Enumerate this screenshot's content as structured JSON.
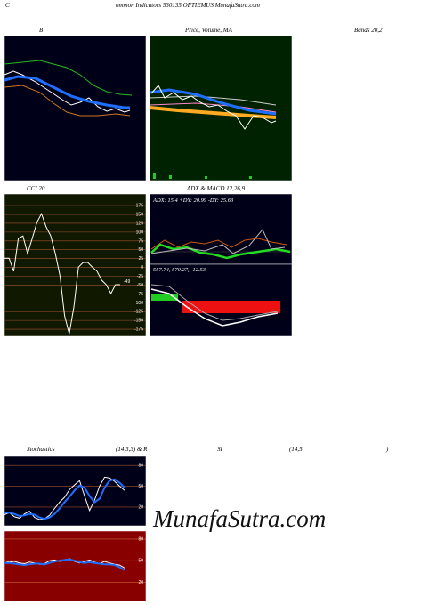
{
  "header": {
    "lead": "C",
    "title": "ommon  Indicators 530135 OPTIEMUS MunafaSutra.com"
  },
  "labels": {
    "b": "B",
    "price": "Price, Volume, MA",
    "bands": "Bands 20,2",
    "cci": "CCI 20",
    "adx_macd": "ADX  & MACD 12,26,9",
    "adx": "ADX: 15.4  +DY: 20.99 -DY: 25.63",
    "macd": "557.74,  570.27,  -12.53",
    "cci_last": "-49",
    "stoch": "Stochastics",
    "stoch_params": "(14,3,3) & R",
    "rsi": "SI",
    "rsi_params": "(14,5",
    "close": ")"
  },
  "watermark": "MunafaSutra.com",
  "chart_data": [
    {
      "type": "line",
      "ylim": [
        -195,
        208
      ],
      "yticks": [
        175,
        150,
        125,
        100,
        75,
        50,
        25,
        0,
        -25,
        -50,
        -75,
        -100,
        -125,
        -150,
        -175
      ],
      "series": [
        {
          "color": "#ffffff",
          "values": [
            26,
            26,
            -11,
            82,
            89,
            39,
            82,
            127,
            152,
            115,
            89,
            39,
            -24,
            -137,
            -188,
            -112,
            1,
            14,
            14,
            1,
            -11,
            -36,
            -49,
            -74,
            -49,
            -49
          ]
        }
      ]
    },
    {
      "type": "line",
      "ylim": [
        -7,
        93
      ],
      "yticks": [
        80,
        50,
        20
      ],
      "series": [
        {
          "color": "#ffffff",
          "values": [
            9,
            12,
            6,
            4,
            10,
            14,
            5,
            2,
            3,
            8,
            18,
            27,
            34,
            45,
            52,
            58,
            36,
            15,
            30,
            50,
            63,
            62,
            57,
            50,
            44
          ]
        },
        {
          "color": "#1e6fff",
          "values": [
            12,
            12,
            10,
            7,
            8,
            10,
            9,
            5,
            3,
            5,
            10,
            18,
            27,
            35,
            44,
            51,
            48,
            36,
            27,
            32,
            48,
            58,
            60,
            55,
            48
          ]
        }
      ]
    },
    {
      "type": "line",
      "ylim": [
        -6.5,
        91
      ],
      "yticks": [
        80,
        50,
        20
      ],
      "series": [
        {
          "color": "#ffffff",
          "values": [
            50,
            48,
            49,
            47,
            46,
            48,
            47,
            45,
            46,
            50,
            51,
            49,
            50,
            53,
            49,
            47,
            49,
            51,
            48,
            46,
            49,
            47,
            45,
            44,
            40
          ]
        },
        {
          "color": "#1e6fff",
          "values": [
            47,
            47,
            46,
            45,
            44,
            45,
            46,
            46,
            45,
            47,
            49,
            50,
            51,
            52,
            50,
            48,
            47,
            48,
            47,
            46,
            45,
            45,
            44,
            41,
            37
          ]
        }
      ]
    }
  ]
}
